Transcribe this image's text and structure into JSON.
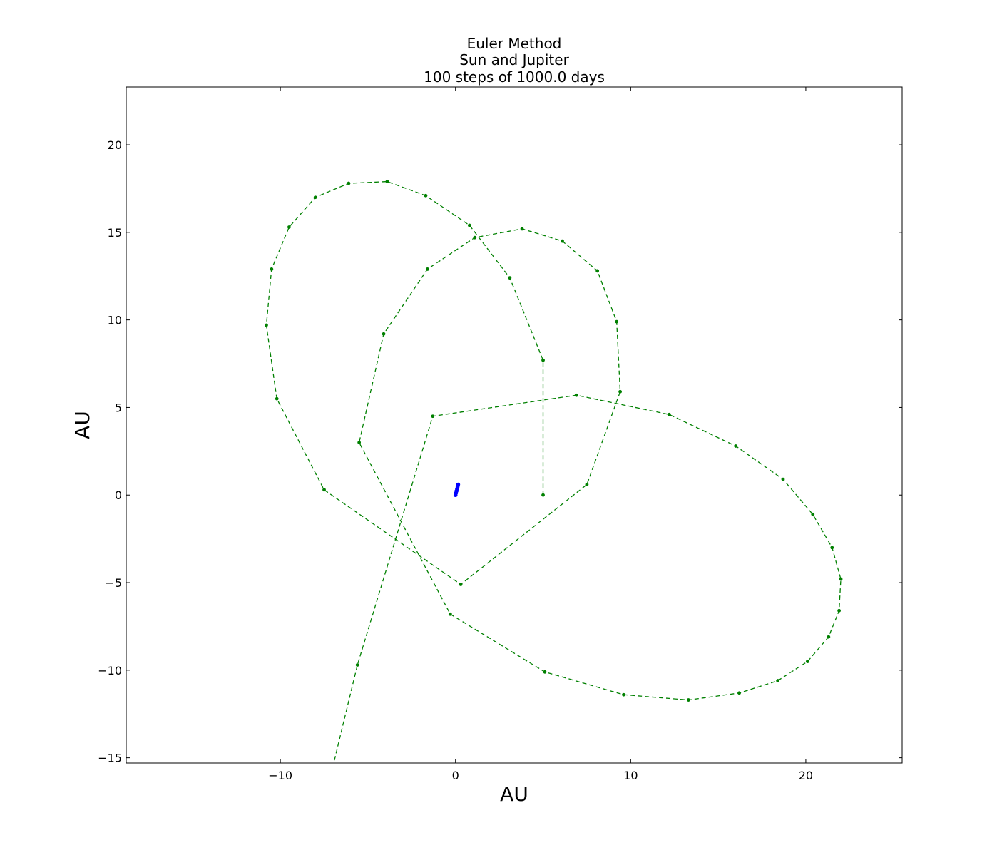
{
  "chart_data": {
    "type": "line",
    "title_lines": [
      "Euler Method",
      "Sun and Jupiter",
      "100 steps of 1000.0 days"
    ],
    "xlabel": "AU",
    "ylabel": "AU",
    "xlim": [
      -18.8,
      25.5
    ],
    "ylim": [
      -15.3,
      23.3
    ],
    "x_ticks": [
      -10,
      0,
      10,
      20
    ],
    "y_ticks": [
      -15,
      -10,
      -5,
      0,
      5,
      10,
      15,
      20
    ],
    "x_tick_labels": [
      "−10",
      "0",
      "10",
      "20"
    ],
    "y_tick_labels": [
      "−15",
      "−10",
      "−5",
      "0",
      "5",
      "10",
      "15",
      "20"
    ],
    "grid": false,
    "series": [
      {
        "color": "#008000",
        "line_style": "dashed",
        "marker": "dot",
        "points": [
          [
            5.0,
            0.0
          ],
          [
            5.0,
            7.7
          ],
          [
            3.1,
            12.4
          ],
          [
            0.8,
            15.4
          ],
          [
            -1.7,
            17.1
          ],
          [
            -3.9,
            17.9
          ],
          [
            -6.1,
            17.8
          ],
          [
            -8.0,
            17.0
          ],
          [
            -9.5,
            15.3
          ],
          [
            -10.5,
            12.9
          ],
          [
            -10.8,
            9.7
          ],
          [
            -10.2,
            5.5
          ],
          [
            -7.5,
            0.3
          ],
          [
            0.3,
            -5.1
          ],
          [
            7.5,
            0.6
          ],
          [
            9.4,
            5.9
          ],
          [
            9.2,
            9.9
          ],
          [
            8.1,
            12.8
          ],
          [
            6.1,
            14.5
          ],
          [
            3.8,
            15.2
          ],
          [
            1.1,
            14.7
          ],
          [
            -1.6,
            12.9
          ],
          [
            -4.1,
            9.2
          ],
          [
            -5.5,
            3.0
          ],
          [
            -0.3,
            -6.8
          ],
          [
            5.1,
            -10.1
          ],
          [
            9.6,
            -11.4
          ],
          [
            13.3,
            -11.7
          ],
          [
            16.2,
            -11.3
          ],
          [
            18.4,
            -10.6
          ],
          [
            20.1,
            -9.5
          ],
          [
            21.3,
            -8.1
          ],
          [
            21.9,
            -6.6
          ],
          [
            22.0,
            -4.8
          ],
          [
            21.5,
            -3.0
          ],
          [
            20.4,
            -1.1
          ],
          [
            18.7,
            0.9
          ],
          [
            16.0,
            2.8
          ],
          [
            12.2,
            4.6
          ],
          [
            6.9,
            5.7
          ],
          [
            -1.3,
            4.5
          ],
          [
            -5.6,
            -9.7
          ],
          [
            -7.0,
            -15.5
          ]
        ]
      },
      {
        "color": "#0000ff",
        "line_style": "solid",
        "marker": "dot",
        "points": [
          [
            0.0,
            0.0
          ],
          [
            0.03,
            0.12
          ],
          [
            0.06,
            0.24
          ],
          [
            0.09,
            0.36
          ],
          [
            0.12,
            0.48
          ],
          [
            0.15,
            0.6
          ]
        ]
      }
    ]
  }
}
